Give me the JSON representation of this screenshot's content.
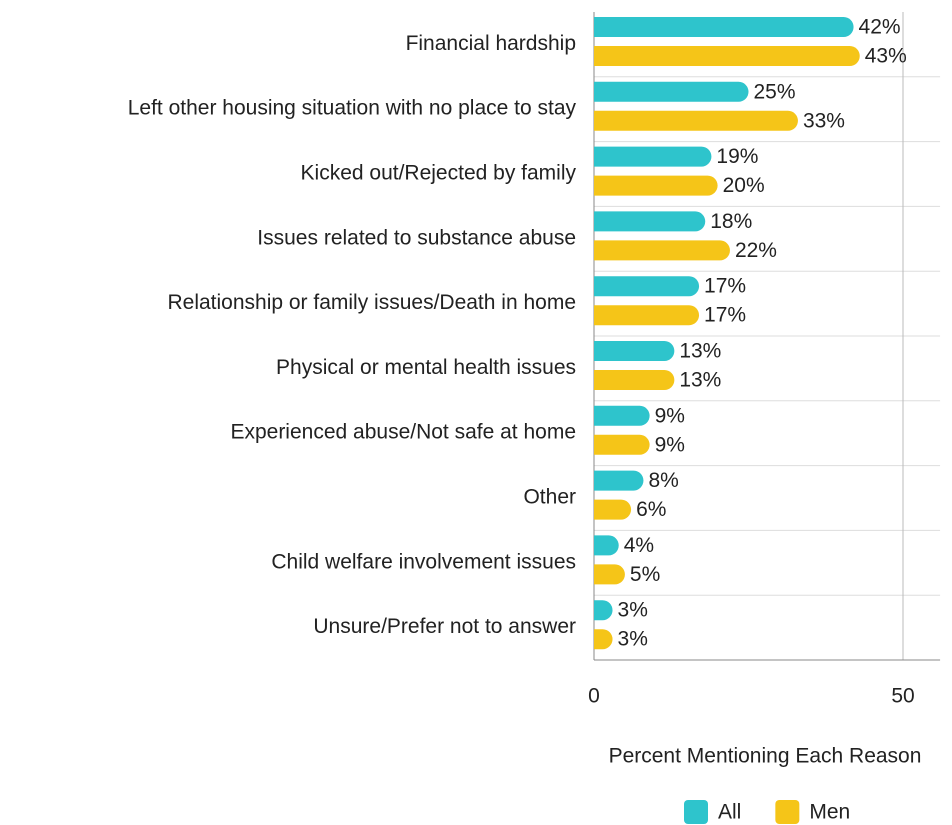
{
  "chart_data": {
    "type": "bar",
    "orientation": "horizontal",
    "categories": [
      "Financial hardship",
      "Left other housing situation with no place to stay",
      "Kicked out/Rejected by family",
      "Issues related to substance abuse",
      "Relationship or family issues/Death in home",
      "Physical or mental health issues",
      "Experienced abuse/Not safe at home",
      "Other",
      "Child welfare involvement issues",
      "Unsure/Prefer not to answer"
    ],
    "series": [
      {
        "name": "All",
        "color": "#2ec4cc",
        "values": [
          42,
          25,
          19,
          18,
          17,
          13,
          9,
          8,
          4,
          3
        ],
        "value_labels": [
          "42%",
          "25%",
          "19%",
          "18%",
          "17%",
          "13%",
          "9%",
          "8%",
          "4%",
          "3%"
        ]
      },
      {
        "name": "Men",
        "color": "#f5c518",
        "values": [
          43,
          33,
          20,
          22,
          17,
          13,
          9,
          6,
          5,
          3
        ],
        "value_labels": [
          "43%",
          "33%",
          "20%",
          "22%",
          "17%",
          "13%",
          "9%",
          "6%",
          "5%",
          "3%"
        ]
      }
    ],
    "x_label": "Percent Mentioning Each Reason",
    "xlim": [
      0,
      56
    ],
    "xticks": [
      0,
      50
    ],
    "grid": true,
    "legend": "bottom"
  }
}
